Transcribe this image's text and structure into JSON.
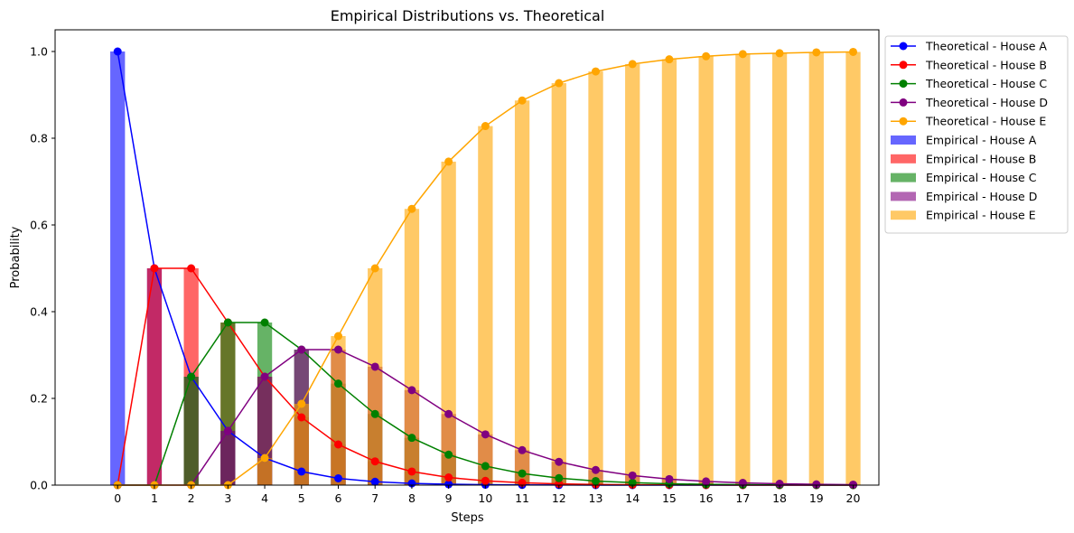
{
  "chart_data": {
    "type": "bar",
    "title": "Empirical Distributions vs. Theoretical",
    "xlabel": "Steps",
    "ylabel": "Probability",
    "xlim": [
      -1.7,
      20.7
    ],
    "ylim": [
      0,
      1.05
    ],
    "x": [
      0,
      1,
      2,
      3,
      4,
      5,
      6,
      7,
      8,
      9,
      10,
      11,
      12,
      13,
      14,
      15,
      16,
      17,
      18,
      19,
      20
    ],
    "x_tick_labels": [
      "0",
      "1",
      "2",
      "3",
      "4",
      "5",
      "6",
      "7",
      "8",
      "9",
      "10",
      "11",
      "12",
      "13",
      "14",
      "15",
      "16",
      "17",
      "18",
      "19",
      "20"
    ],
    "y_ticks": [
      0.0,
      0.2,
      0.4,
      0.6,
      0.8,
      1.0
    ],
    "y_tick_labels": [
      "0.0",
      "0.2",
      "0.4",
      "0.6",
      "0.8",
      "1.0"
    ],
    "legend_position": "outside top-right",
    "grid": false,
    "lines": [
      {
        "name": "Theoretical - House A",
        "color": "#0000ff",
        "values": [
          1.0,
          0.5,
          0.25,
          0.125,
          0.0625,
          0.03125,
          0.015625,
          0.0078,
          0.0039,
          0.002,
          0.001,
          0.0005,
          0.0002,
          0.0001,
          0.0001,
          0.0,
          0.0,
          0.0,
          0.0,
          0.0,
          0.0
        ]
      },
      {
        "name": "Theoretical - House B",
        "color": "#ff0000",
        "values": [
          0.0,
          0.5,
          0.5,
          0.375,
          0.25,
          0.15625,
          0.09375,
          0.0547,
          0.0313,
          0.0176,
          0.0098,
          0.0054,
          0.0029,
          0.0016,
          0.0009,
          0.0005,
          0.0002,
          0.0001,
          0.0001,
          0.0,
          0.0
        ]
      },
      {
        "name": "Theoretical - House C",
        "color": "#008000",
        "values": [
          0.0,
          0.0,
          0.25,
          0.375,
          0.375,
          0.3125,
          0.234,
          0.164,
          0.109,
          0.0703,
          0.0439,
          0.0269,
          0.0161,
          0.0095,
          0.0056,
          0.0032,
          0.0018,
          0.001,
          0.0006,
          0.0003,
          0.0002
        ]
      },
      {
        "name": "Theoretical - House D",
        "color": "#800080",
        "values": [
          0.0,
          0.0,
          0.0,
          0.125,
          0.25,
          0.3125,
          0.3125,
          0.273,
          0.219,
          0.164,
          0.117,
          0.0806,
          0.0537,
          0.0349,
          0.0222,
          0.0139,
          0.0085,
          0.0052,
          0.0031,
          0.0018,
          0.0011
        ]
      },
      {
        "name": "Theoretical - House E",
        "color": "#ffa500",
        "values": [
          0.0,
          0.0,
          0.0,
          0.0,
          0.0625,
          0.1875,
          0.34375,
          0.5,
          0.637,
          0.746,
          0.828,
          0.887,
          0.927,
          0.954,
          0.971,
          0.982,
          0.989,
          0.994,
          0.996,
          0.998,
          0.999
        ]
      }
    ],
    "bars": [
      {
        "name": "Empirical - House A",
        "color": "#0000ff",
        "opacity": 0.6,
        "values": [
          1.0,
          0.5,
          0.25,
          0.125,
          0.0625,
          0.03125,
          0.015625,
          0.0078,
          0.0039,
          0.002,
          0.001,
          0.0005,
          0.0002,
          0.0001,
          0.0001,
          0.0,
          0.0,
          0.0,
          0.0,
          0.0,
          0.0
        ]
      },
      {
        "name": "Empirical - House B",
        "color": "#ff0000",
        "opacity": 0.6,
        "values": [
          0.0,
          0.5,
          0.5,
          0.375,
          0.25,
          0.15625,
          0.09375,
          0.0547,
          0.0313,
          0.0176,
          0.0098,
          0.0054,
          0.0029,
          0.0016,
          0.0009,
          0.0005,
          0.0002,
          0.0001,
          0.0001,
          0.0,
          0.0
        ]
      },
      {
        "name": "Empirical - House C",
        "color": "#008000",
        "opacity": 0.6,
        "values": [
          0.0,
          0.0,
          0.25,
          0.375,
          0.375,
          0.3125,
          0.234,
          0.164,
          0.109,
          0.0703,
          0.0439,
          0.0269,
          0.0161,
          0.0095,
          0.0056,
          0.0032,
          0.0018,
          0.001,
          0.0006,
          0.0003,
          0.0002
        ]
      },
      {
        "name": "Empirical - House D",
        "color": "#800080",
        "opacity": 0.6,
        "values": [
          0.0,
          0.0,
          0.0,
          0.125,
          0.25,
          0.3125,
          0.3125,
          0.273,
          0.219,
          0.164,
          0.117,
          0.0806,
          0.0537,
          0.0349,
          0.0222,
          0.0139,
          0.0085,
          0.0052,
          0.0031,
          0.0018,
          0.0011
        ]
      },
      {
        "name": "Empirical - House E",
        "color": "#ffa500",
        "opacity": 0.6,
        "values": [
          0.0,
          0.0,
          0.0,
          0.0,
          0.0625,
          0.1875,
          0.34375,
          0.5,
          0.637,
          0.746,
          0.828,
          0.887,
          0.927,
          0.954,
          0.971,
          0.982,
          0.989,
          0.994,
          0.996,
          0.998,
          0.999
        ]
      }
    ]
  }
}
